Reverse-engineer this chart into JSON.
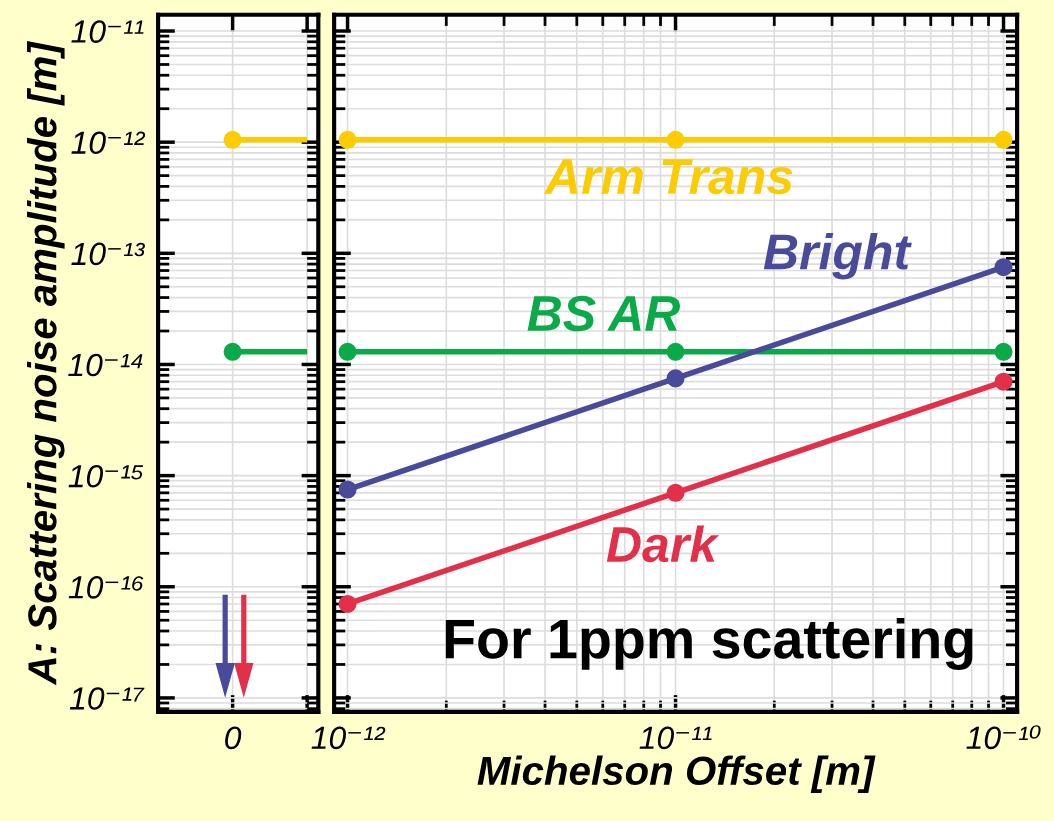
{
  "chart_data": [
    {
      "type": "line",
      "ylabel": "A: Scattering noise amplitude [m]",
      "categories": [
        "0",
        null
      ],
      "log": "y",
      "ylim": [
        7.5e-18,
        1.4e-11
      ],
      "yticks": [
        {
          "value": 1e-17,
          "label": "10⁻¹⁷"
        },
        {
          "value": 1e-16,
          "label": "10⁻¹⁶"
        },
        {
          "value": 1e-15,
          "label": "10⁻¹⁵"
        },
        {
          "value": 1e-14,
          "label": "10⁻¹⁴"
        },
        {
          "value": 1e-13,
          "label": "10⁻¹³"
        },
        {
          "value": 1e-12,
          "label": "10⁻¹²"
        },
        {
          "value": 1e-11,
          "label": "10⁻¹¹"
        }
      ],
      "grid": true,
      "marker": "circle",
      "series": [
        {
          "color": "#fccc00",
          "values": [
            1.05e-12,
            1.05e-12
          ]
        },
        {
          "color": "#0aaa48",
          "values": [
            1.3e-14,
            1.3e-14
          ]
        },
        {
          "color": "#4a4a9a",
          "values": [
            null,
            null
          ]
        },
        {
          "color": "#e2304a",
          "values": [
            null,
            null
          ]
        }
      ]
    },
    {
      "type": "line",
      "xlabel": "Michelson Offset [m]",
      "log": "xy",
      "xlim": [
        9.1e-13,
        1.1e-10
      ],
      "ylim": [
        7.5e-18,
        1.4e-11
      ],
      "xticks": [
        {
          "value": 1e-12,
          "label": "10⁻¹²"
        },
        {
          "value": 1e-11,
          "label": "10⁻¹¹"
        },
        {
          "value": 1e-10,
          "label": "10⁻¹⁰"
        }
      ],
      "yticks": [
        1e-17,
        1e-16,
        1e-15,
        1e-14,
        1e-13,
        1e-12,
        1e-11
      ],
      "tick_labels": "x",
      "grid": true,
      "marker": "circle",
      "x": [
        1e-12,
        1e-11,
        1e-10
      ],
      "series": [
        {
          "name": "Arm Trans",
          "color": "#fccc00",
          "values": [
            1.05e-12,
            1.05e-12,
            1.05e-12
          ]
        },
        {
          "name": "BS AR",
          "color": "#0aaa48",
          "values": [
            1.3e-14,
            1.3e-14,
            1.3e-14
          ]
        },
        {
          "name": "Bright",
          "color": "#4a4a9a",
          "values": [
            7.5e-16,
            7.5e-15,
            7.5e-14
          ]
        },
        {
          "name": "Dark",
          "color": "#e2304a",
          "values": [
            7e-17,
            7e-16,
            7e-15
          ]
        }
      ],
      "annotations": [
        "For 1ppm scattering"
      ]
    }
  ]
}
